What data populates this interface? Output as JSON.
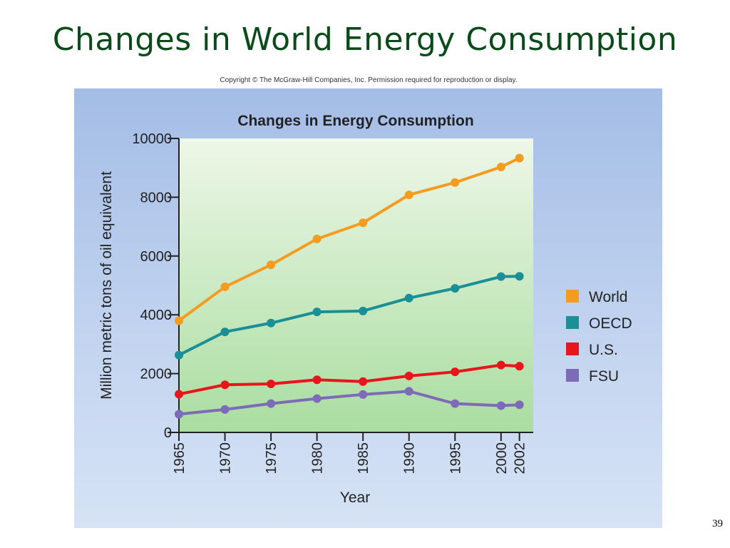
{
  "slide": {
    "title": "Changes in World Energy Consumption",
    "copyright": "Copyright © The McGraw-Hill Companies, Inc. Permission required for reproduction or display.",
    "page_number": "39"
  },
  "chart_data": {
    "type": "line",
    "title": "Changes in Energy Consumption",
    "xlabel": "Year",
    "ylabel": "Million metric tons of oil equivalent",
    "x": [
      1965,
      1970,
      1975,
      1980,
      1985,
      1990,
      1995,
      2000,
      2002
    ],
    "ylim": [
      0,
      10000
    ],
    "yticks": [
      0,
      2000,
      4000,
      6000,
      8000,
      10000
    ],
    "xlim": [
      1965,
      2003.5
    ],
    "grid": false,
    "legend": "right",
    "series": [
      {
        "name": "World",
        "color": "#f39c1f",
        "values": [
          3800,
          4950,
          5700,
          6580,
          7130,
          8080,
          8500,
          9030,
          9330
        ]
      },
      {
        "name": "OECD",
        "color": "#1a8f96",
        "values": [
          2630,
          3420,
          3720,
          4100,
          4130,
          4570,
          4900,
          5300,
          5310
        ]
      },
      {
        "name": "U.S.",
        "color": "#e8151b",
        "values": [
          1300,
          1620,
          1650,
          1790,
          1730,
          1920,
          2060,
          2290,
          2250
        ]
      },
      {
        "name": "FSU",
        "color": "#7d6bb8",
        "values": [
          620,
          780,
          980,
          1150,
          1290,
          1400,
          980,
          910,
          940
        ]
      }
    ]
  }
}
